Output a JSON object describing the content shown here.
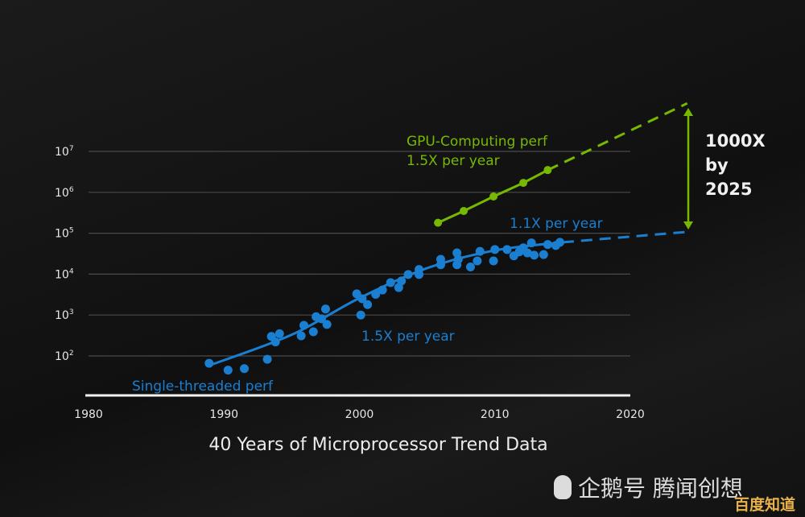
{
  "chart_data": {
    "type": "scatter",
    "title": "40 Years of Microprocessor Trend Data",
    "xlabel": "",
    "ylabel": "",
    "xlim": [
      1980,
      2020
    ],
    "ylim": [
      10,
      10000000
    ],
    "yscale": "log",
    "grid": true,
    "x_ticks": [
      "1980",
      "1990",
      "2000",
      "2010",
      "2020"
    ],
    "y_ticks": [
      {
        "base": "10",
        "exp": "2",
        "value": 100
      },
      {
        "base": "10",
        "exp": "3",
        "value": 1000
      },
      {
        "base": "10",
        "exp": "4",
        "value": 10000
      },
      {
        "base": "10",
        "exp": "5",
        "value": 100000
      },
      {
        "base": "10",
        "exp": "6",
        "value": 1000000
      },
      {
        "base": "10",
        "exp": "7",
        "value": 10000000
      }
    ],
    "series": [
      {
        "name": "Single-threaded perf",
        "color": "#1a7fd1",
        "points": [
          [
            1988.9,
            66
          ],
          [
            1990.3,
            45
          ],
          [
            1991.5,
            49
          ],
          [
            1993.2,
            83
          ],
          [
            1993.5,
            300
          ],
          [
            1993.8,
            220
          ],
          [
            1994.1,
            350
          ],
          [
            1995.7,
            310
          ],
          [
            1995.9,
            560
          ],
          [
            1996.6,
            390
          ],
          [
            1996.8,
            910
          ],
          [
            1997.2,
            810
          ],
          [
            1997.5,
            1400
          ],
          [
            1997.6,
            590
          ],
          [
            1999.8,
            3300
          ],
          [
            2000.2,
            2500
          ],
          [
            2000.6,
            1800
          ],
          [
            2000.1,
            1000
          ],
          [
            2001.2,
            3200
          ],
          [
            2001.7,
            4100
          ],
          [
            2002.3,
            6200
          ],
          [
            2002.9,
            4700
          ],
          [
            2003.1,
            6800
          ],
          [
            2003.6,
            9800
          ],
          [
            2004.4,
            13000
          ],
          [
            2004.4,
            9800
          ],
          [
            2006.0,
            23000
          ],
          [
            2006.0,
            17000
          ],
          [
            2007.2,
            33000
          ],
          [
            2007.2,
            17000
          ],
          [
            2007.3,
            23000
          ],
          [
            2008.2,
            15000
          ],
          [
            2008.7,
            21000
          ],
          [
            2008.9,
            36000
          ],
          [
            2010.0,
            40000
          ],
          [
            2009.9,
            21000
          ],
          [
            2010.9,
            40000
          ],
          [
            2011.4,
            28000
          ],
          [
            2011.8,
            35000
          ],
          [
            2012.1,
            44000
          ],
          [
            2012.4,
            33000
          ],
          [
            2012.9,
            29000
          ],
          [
            2012.7,
            58000
          ],
          [
            2013.6,
            30000
          ],
          [
            2013.9,
            53000
          ],
          [
            2014.5,
            50000
          ],
          [
            2014.8,
            60000
          ]
        ],
        "trend": [
          [
            1989,
            60
          ],
          [
            1995,
            330
          ],
          [
            2000,
            2600
          ],
          [
            2005,
            14000
          ],
          [
            2010,
            38000
          ],
          [
            2015,
            60000
          ]
        ],
        "projection": [
          [
            2015,
            60000
          ],
          [
            2024.5,
            110000
          ]
        ],
        "annotations": [
          "1.5X per year",
          "1.1X per year"
        ]
      },
      {
        "name": "GPU-Computing perf",
        "color": "#76b900",
        "points": [
          [
            2005.8,
            180000
          ],
          [
            2007.7,
            350000
          ],
          [
            2009.9,
            790000
          ],
          [
            2012.1,
            1700000
          ],
          [
            2013.9,
            3500000
          ]
        ],
        "projection": [
          [
            2013.9,
            3500000
          ],
          [
            2024.2,
            150000000
          ]
        ],
        "annotations": [
          "1.5X per year"
        ]
      }
    ],
    "callout": {
      "lines": [
        "1000X",
        "by",
        "2025"
      ],
      "color": "#76b900"
    }
  },
  "watermark": {
    "text": "企鹅号 腾闻创想",
    "badge": "百度知道"
  }
}
